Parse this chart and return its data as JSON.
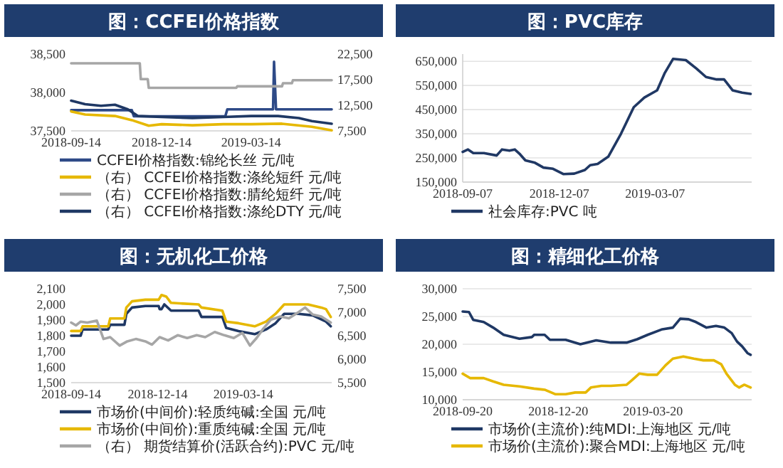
{
  "chart_data": [
    {
      "type": "line",
      "title": "图：CCFEI价格指数",
      "xlim": [
        "2018-09-14",
        "2019-06-03"
      ],
      "xticks": [
        "2018-09-14",
        "2018-12-14",
        "2019-03-14"
      ],
      "ylim": [
        37500,
        38500
      ],
      "yticks": [
        {
          "value": 37500,
          "label": "37,500"
        },
        {
          "value": 38000,
          "label": "38,000"
        },
        {
          "value": 38500,
          "label": "38,500"
        }
      ],
      "y2lim": [
        7500,
        22500
      ],
      "y2ticks": [
        {
          "value": 7500,
          "label": "7,500"
        },
        {
          "value": 12500,
          "label": "12,500"
        },
        {
          "value": 17500,
          "label": "17,500"
        },
        {
          "value": 22500,
          "label": "22,500"
        }
      ],
      "legend": "bottom",
      "series": [
        {
          "name": "CCFEI价格指数:锦纶长丝 元/吨",
          "color": "#2e4a87",
          "x": [
            "2018-09-14",
            "2018-11-14",
            "2018-11-16",
            "2019-02-16",
            "2019-02-18",
            "2019-04-05",
            "2019-04-06",
            "2019-04-08",
            "2019-06-03"
          ],
          "values": [
            37770,
            37770,
            37690,
            37690,
            37780,
            37780,
            38400,
            37780,
            37780
          ]
        },
        {
          "name": "（右） CCFEI价格指数:涤纶短纤 元/吨",
          "color": "#e6b800",
          "axis": "y2",
          "x": [
            "2018-09-14",
            "2018-09-28",
            "2018-10-28",
            "2018-11-14",
            "2018-12-01",
            "2018-12-14",
            "2019-01-14",
            "2019-02-14",
            "2019-03-14",
            "2019-04-14",
            "2019-05-14",
            "2019-06-03"
          ],
          "values": [
            11300,
            10700,
            10400,
            9600,
            8500,
            8800,
            8600,
            8800,
            8800,
            8900,
            8300,
            7600
          ]
        },
        {
          "name": "（右） CCFEI价格指数:腈纶短纤 元/吨",
          "color": "#a6a6a6",
          "axis": "y2",
          "x": [
            "2018-09-14",
            "2018-11-22",
            "2018-11-23",
            "2018-11-30",
            "2018-12-01",
            "2019-02-27",
            "2019-02-28",
            "2019-04-14",
            "2019-04-15",
            "2019-04-24",
            "2019-04-25",
            "2019-06-03"
          ],
          "values": [
            20700,
            20700,
            17600,
            17600,
            15900,
            15900,
            16200,
            16200,
            16800,
            16800,
            17400,
            17400
          ]
        },
        {
          "name": "（右） CCFEI价格指数:涤纶DTY 元/吨",
          "color": "#1f3864",
          "axis": "y2",
          "x": [
            "2018-09-14",
            "2018-09-28",
            "2018-10-14",
            "2018-10-28",
            "2018-11-10",
            "2018-11-20",
            "2018-12-14",
            "2019-01-14",
            "2019-02-14",
            "2019-03-14",
            "2019-04-10",
            "2019-05-01",
            "2019-05-14",
            "2019-06-03"
          ],
          "values": [
            13400,
            12700,
            12400,
            12600,
            11700,
            10400,
            10200,
            10000,
            10200,
            10400,
            10400,
            10000,
            9400,
            8900
          ]
        }
      ]
    },
    {
      "type": "line",
      "title": "图：PVC库存",
      "xlim": [
        "2018-09-07",
        "2019-06-06"
      ],
      "xticks": [
        "2018-09-07",
        "2018-12-07",
        "2019-03-07"
      ],
      "ylim": [
        150000,
        680000
      ],
      "yticks": [
        {
          "value": 150000,
          "label": "150,000"
        },
        {
          "value": 250000,
          "label": "250,000"
        },
        {
          "value": 350000,
          "label": "350,000"
        },
        {
          "value": 450000,
          "label": "450,000"
        },
        {
          "value": 550000,
          "label": "550,000"
        },
        {
          "value": 650000,
          "label": "650,000"
        }
      ],
      "grid": "y",
      "legend": "bottom",
      "series": [
        {
          "name": "社会库存:PVC 吨",
          "color": "#203864",
          "x": [
            "2018-09-07",
            "2018-09-12",
            "2018-09-17",
            "2018-09-27",
            "2018-10-09",
            "2018-10-14",
            "2018-10-21",
            "2018-10-26",
            "2018-10-31",
            "2018-11-05",
            "2018-11-14",
            "2018-11-22",
            "2018-12-01",
            "2018-12-11",
            "2018-12-21",
            "2018-12-31",
            "2019-01-05",
            "2019-01-12",
            "2019-01-22",
            "2019-02-03",
            "2019-02-15",
            "2019-02-25",
            "2019-03-09",
            "2019-03-16",
            "2019-03-24",
            "2019-04-05",
            "2019-04-15",
            "2019-04-24",
            "2019-05-04",
            "2019-05-11",
            "2019-05-19",
            "2019-05-28",
            "2019-06-05"
          ],
          "values": [
            275000,
            285000,
            270000,
            270000,
            260000,
            285000,
            280000,
            285000,
            265000,
            240000,
            230000,
            210000,
            205000,
            183000,
            185000,
            200000,
            220000,
            225000,
            255000,
            350000,
            460000,
            500000,
            530000,
            600000,
            660000,
            655000,
            620000,
            585000,
            575000,
            575000,
            530000,
            520000,
            515000
          ]
        }
      ]
    },
    {
      "type": "line",
      "title": "图：无机化工价格",
      "xlim": [
        "2018-09-14",
        "2019-06-15"
      ],
      "xticks": [
        "2018-09-14",
        "2018-12-14",
        "2019-03-14"
      ],
      "ylim": [
        1500,
        2100
      ],
      "yticks": [
        {
          "value": 1500,
          "label": "1,500"
        },
        {
          "value": 1600,
          "label": "1,600"
        },
        {
          "value": 1700,
          "label": "1,700"
        },
        {
          "value": 1800,
          "label": "1,800"
        },
        {
          "value": 1900,
          "label": "1,900"
        },
        {
          "value": 2000,
          "label": "2,000"
        },
        {
          "value": 2100,
          "label": "2,100"
        }
      ],
      "y2lim": [
        5500,
        7500
      ],
      "y2ticks": [
        {
          "value": 5500,
          "label": "5,500"
        },
        {
          "value": 6000,
          "label": "6,000"
        },
        {
          "value": 6500,
          "label": "6,500"
        },
        {
          "value": 7000,
          "label": "7,000"
        },
        {
          "value": 7500,
          "label": "7,500"
        }
      ],
      "legend": "bottom",
      "series": [
        {
          "name": "市场价(中间价):轻质纯碱:全国 元/吨",
          "color": "#1f3864",
          "x": [
            "2018-09-14",
            "2018-09-24",
            "2018-09-26",
            "2018-10-23",
            "2018-10-25",
            "2018-11-09",
            "2018-11-11",
            "2018-11-17",
            "2018-12-01",
            "2018-12-15",
            "2018-12-16",
            "2018-12-18",
            "2018-12-21",
            "2018-12-28",
            "2019-01-26",
            "2019-01-29",
            "2019-02-20",
            "2019-02-24",
            "2019-03-09",
            "2019-03-26",
            "2019-04-07",
            "2019-04-17",
            "2019-04-26",
            "2019-05-11",
            "2019-05-26",
            "2019-06-09",
            "2019-06-14"
          ],
          "values": [
            1800,
            1800,
            1840,
            1840,
            1870,
            1870,
            1940,
            1980,
            1990,
            1990,
            1970,
            1970,
            2000,
            1960,
            1960,
            1920,
            1920,
            1850,
            1830,
            1810,
            1840,
            1880,
            1940,
            1940,
            1930,
            1890,
            1860
          ]
        },
        {
          "name": "市场价(中间价):重质纯碱:全国 元/吨",
          "color": "#e6b800",
          "x": [
            "2018-09-14",
            "2018-09-24",
            "2018-09-26",
            "2018-10-23",
            "2018-10-25",
            "2018-11-09",
            "2018-11-11",
            "2018-11-17",
            "2018-12-01",
            "2018-12-15",
            "2018-12-18",
            "2018-12-23",
            "2018-12-28",
            "2019-01-26",
            "2019-01-29",
            "2019-02-20",
            "2019-02-24",
            "2019-03-09",
            "2019-03-26",
            "2019-04-07",
            "2019-04-17",
            "2019-04-26",
            "2019-05-21",
            "2019-06-04",
            "2019-06-09",
            "2019-06-14"
          ],
          "values": [
            1830,
            1830,
            1860,
            1860,
            1910,
            1910,
            1980,
            2020,
            2030,
            2030,
            2060,
            2050,
            2010,
            2000,
            1980,
            1960,
            1890,
            1880,
            1860,
            1890,
            1940,
            2000,
            2000,
            1980,
            1970,
            1920
          ]
        },
        {
          "name": "（右） 期货结算价(活跃合约):PVC 元/吨",
          "color": "#a6a6a6",
          "axis": "y2",
          "x": [
            "2018-09-14",
            "2018-09-19",
            "2018-09-24",
            "2018-10-01",
            "2018-10-11",
            "2018-10-18",
            "2018-10-25",
            "2018-11-04",
            "2018-11-12",
            "2018-11-21",
            "2018-12-01",
            "2018-12-08",
            "2018-12-16",
            "2018-12-25",
            "2019-01-04",
            "2019-01-14",
            "2019-01-24",
            "2019-02-02",
            "2019-02-12",
            "2019-02-22",
            "2019-03-04",
            "2019-03-13",
            "2019-03-21",
            "2019-03-28",
            "2019-04-04",
            "2019-04-12",
            "2019-04-22",
            "2019-05-01",
            "2019-05-11",
            "2019-05-18",
            "2019-05-26",
            "2019-06-04",
            "2019-06-14"
          ],
          "values": [
            6780,
            6720,
            6800,
            6780,
            6820,
            6430,
            6470,
            6290,
            6380,
            6430,
            6380,
            6310,
            6470,
            6400,
            6510,
            6450,
            6510,
            6470,
            6580,
            6510,
            6450,
            6560,
            6290,
            6450,
            6650,
            6840,
            6910,
            6870,
            7000,
            7100,
            6950,
            6910,
            6780
          ]
        }
      ]
    },
    {
      "type": "line",
      "title": "图：精细化工价格",
      "xlim": [
        "2018-09-20",
        "2019-06-22"
      ],
      "xticks": [
        "2018-09-20",
        "2018-12-20",
        "2019-03-20"
      ],
      "ylim": [
        10000,
        30000
      ],
      "yticks": [
        {
          "value": 10000,
          "label": "10,000"
        },
        {
          "value": 15000,
          "label": "15,000"
        },
        {
          "value": 20000,
          "label": "20,000"
        },
        {
          "value": 25000,
          "label": "25,000"
        },
        {
          "value": 30000,
          "label": "30,000"
        }
      ],
      "grid": "y",
      "legend": "bottom",
      "series": [
        {
          "name": "市场价(主流价):纯MDI:上海地区 元/吨",
          "color": "#1f3864",
          "x": [
            "2018-09-20",
            "2018-09-26",
            "2018-09-30",
            "2018-10-10",
            "2018-10-19",
            "2018-10-29",
            "2018-11-13",
            "2018-11-25",
            "2018-11-27",
            "2018-12-07",
            "2018-12-12",
            "2018-12-27",
            "2019-01-10",
            "2019-01-25",
            "2019-02-08",
            "2019-02-23",
            "2019-03-05",
            "2019-03-15",
            "2019-03-29",
            "2019-04-08",
            "2019-04-15",
            "2019-04-23",
            "2019-04-30",
            "2019-05-10",
            "2019-05-19",
            "2019-05-27",
            "2019-06-03",
            "2019-06-08",
            "2019-06-13",
            "2019-06-18",
            "2019-06-21"
          ],
          "values": [
            25900,
            25800,
            24400,
            24000,
            23000,
            21700,
            21000,
            21300,
            21700,
            21700,
            20800,
            20800,
            20000,
            20700,
            20300,
            20300,
            20900,
            21700,
            22700,
            23000,
            24600,
            24500,
            24000,
            23000,
            23300,
            23000,
            22000,
            20500,
            19600,
            18400,
            18100
          ]
        },
        {
          "name": "市场价(主流价):聚合MDI:上海地区 元/吨",
          "color": "#e6b800",
          "x": [
            "2018-09-20",
            "2018-09-27",
            "2018-10-10",
            "2018-10-19",
            "2018-10-29",
            "2018-11-13",
            "2018-11-27",
            "2018-12-07",
            "2018-12-17",
            "2018-12-27",
            "2019-01-05",
            "2019-01-15",
            "2019-01-20",
            "2019-01-30",
            "2019-02-08",
            "2019-02-23",
            "2019-02-28",
            "2019-03-07",
            "2019-03-15",
            "2019-03-24",
            "2019-04-01",
            "2019-04-08",
            "2019-04-18",
            "2019-04-28",
            "2019-05-07",
            "2019-05-17",
            "2019-05-24",
            "2019-05-29",
            "2019-06-06",
            "2019-06-10",
            "2019-06-15",
            "2019-06-21"
          ],
          "values": [
            14700,
            13900,
            13900,
            13300,
            12700,
            12400,
            12000,
            11800,
            11000,
            11000,
            11300,
            11300,
            12200,
            12500,
            12500,
            12700,
            13500,
            14700,
            14500,
            14500,
            16200,
            17400,
            17800,
            17400,
            17100,
            17100,
            16400,
            14700,
            12700,
            12200,
            12700,
            12200
          ]
        }
      ]
    }
  ]
}
